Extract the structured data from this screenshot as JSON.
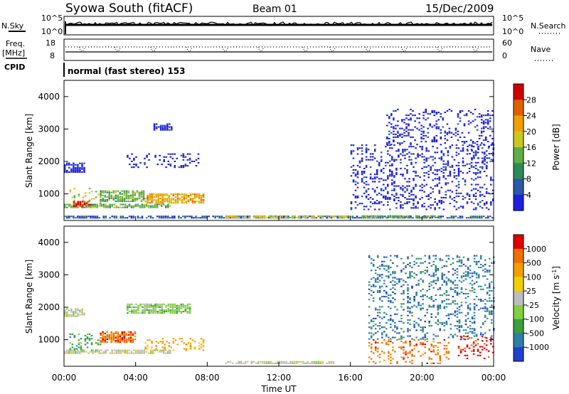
{
  "header": {
    "station": "Syowa South (fitACF)",
    "beam": "Beam 01",
    "date": "15/Dec/2009"
  },
  "noise_panel": {
    "left_label": "N.Sky",
    "right_label": "N.Search",
    "tick_top": "10^5",
    "tick_bottom": "10^0"
  },
  "freq_panel": {
    "left_label_1": "Freq.",
    "left_label_2": "[MHz]",
    "right_label": "Nave",
    "left_ticks": [
      "18",
      "8"
    ],
    "right_ticks": [
      "60",
      "0"
    ]
  },
  "cpid_panel": {
    "label": "CPID",
    "mode_text": "normal (fast stereo) 153"
  },
  "x_axis": {
    "label": "Time UT",
    "ticks": [
      "00:00",
      "04:00",
      "08:00",
      "12:00",
      "16:00",
      "20:00",
      "00:00"
    ]
  },
  "chart_data": [
    {
      "type": "heatmap",
      "name": "power",
      "xlabel": "Time UT",
      "ylabel": "Slant Range [km]",
      "x_range_hours": [
        0,
        24
      ],
      "ylim": [
        180,
        4500
      ],
      "y_ticks": [
        1000,
        2000,
        3000,
        4000
      ],
      "colorbar": {
        "label": "Power [dB]",
        "ticks": [
          "4",
          "8",
          "12",
          "16",
          "20",
          "24",
          "28"
        ],
        "colors": [
          "#1f1fe0",
          "#2b58a8",
          "#2e8b57",
          "#5fae4a",
          "#c8c820",
          "#f0a000",
          "#e06000",
          "#d00000"
        ]
      },
      "regions": [
        {
          "t": [
            0.0,
            1.2
          ],
          "r": [
            1650,
            1950
          ],
          "value_idx": 0
        },
        {
          "t": [
            0.3,
            2.0
          ],
          "r": [
            600,
            1150
          ],
          "value_idx": 4
        },
        {
          "t": [
            2.0,
            4.5
          ],
          "r": [
            750,
            1100
          ],
          "value_idx": 3
        },
        {
          "t": [
            4.5,
            7.8
          ],
          "r": [
            700,
            1000
          ],
          "value_idx": 5
        },
        {
          "t": [
            0.0,
            6.0
          ],
          "r": [
            560,
            660
          ],
          "value_idx": 3
        },
        {
          "t": [
            0.5,
            1.5
          ],
          "r": [
            600,
            760
          ],
          "value_idx": 7
        },
        {
          "t": [
            3.5,
            7.5
          ],
          "r": [
            1800,
            2250
          ],
          "value_idx": 0
        },
        {
          "t": [
            0.0,
            24.0
          ],
          "r": [
            240,
            330
          ],
          "value_idx": 1
        },
        {
          "t": [
            9.0,
            16.0
          ],
          "r": [
            250,
            330
          ],
          "value_idx": 4
        },
        {
          "t": [
            16.5,
            21.0
          ],
          "r": [
            250,
            330
          ],
          "value_idx": 3
        },
        {
          "t": [
            16.0,
            24.0
          ],
          "r": [
            500,
            2500
          ],
          "value_idx": 0
        },
        {
          "t": [
            18.0,
            24.0
          ],
          "r": [
            2500,
            3600
          ],
          "value_idx": 0
        },
        {
          "t": [
            22.5,
            24.0
          ],
          "r": [
            1900,
            2500
          ],
          "value_idx": 0
        },
        {
          "t": [
            5.0,
            6.0
          ],
          "r": [
            2950,
            3150
          ],
          "value_idx": 0
        }
      ]
    },
    {
      "type": "heatmap",
      "name": "velocity",
      "xlabel": "Time UT",
      "ylabel": "Slant Range [km]",
      "x_range_hours": [
        0,
        24
      ],
      "ylim": [
        180,
        4500
      ],
      "y_ticks": [
        1000,
        2000,
        3000,
        4000
      ],
      "colorbar": {
        "label": "Velocity [m s^-1]",
        "ticks": [
          "1000",
          "500",
          "100",
          "25",
          "-25",
          "-100",
          "-500",
          "-1000"
        ],
        "colors": [
          "#2040d0",
          "#2e7fa8",
          "#3aa040",
          "#80d040",
          "#bdbdbd",
          "#f0d000",
          "#f0a000",
          "#f07000",
          "#e00000"
        ]
      },
      "regions": [
        {
          "t": [
            0.0,
            1.2
          ],
          "r": [
            1700,
            1950
          ],
          "value_idx": 4
        },
        {
          "t": [
            0.3,
            2.2
          ],
          "r": [
            650,
            1150
          ],
          "value_idx": 2
        },
        {
          "t": [
            2.0,
            4.0
          ],
          "r": [
            900,
            1250
          ],
          "value_idx": 7
        },
        {
          "t": [
            4.5,
            7.8
          ],
          "r": [
            650,
            1050
          ],
          "value_idx": 6
        },
        {
          "t": [
            0.0,
            6.0
          ],
          "r": [
            560,
            660
          ],
          "value_idx": 4
        },
        {
          "t": [
            3.5,
            7.0
          ],
          "r": [
            1800,
            2100
          ],
          "value_idx": 3
        },
        {
          "t": [
            9.0,
            15.0
          ],
          "r": [
            250,
            330
          ],
          "value_idx": 4
        },
        {
          "t": [
            17.0,
            21.5
          ],
          "r": [
            250,
            1000
          ],
          "value_idx": 7
        },
        {
          "t": [
            17.0,
            24.0
          ],
          "r": [
            1000,
            3600
          ],
          "value_idx": 1
        },
        {
          "t": [
            22.0,
            24.0
          ],
          "r": [
            400,
            1100
          ],
          "value_idx": 8
        }
      ]
    }
  ]
}
